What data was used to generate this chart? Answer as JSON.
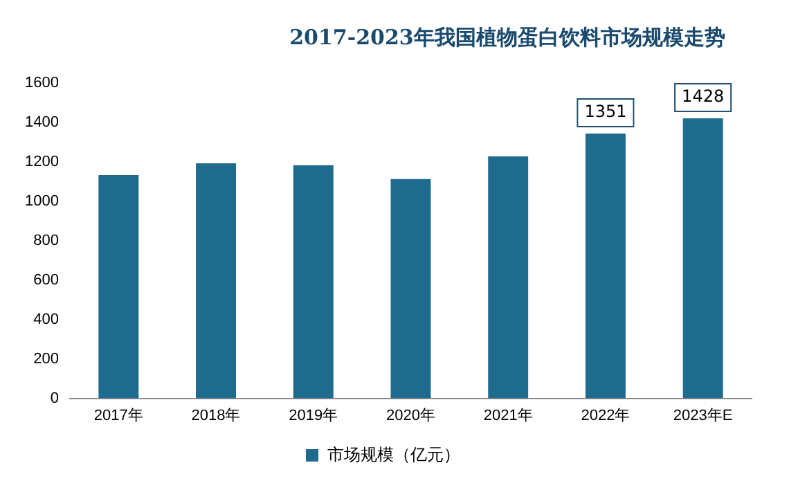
{
  "chart_data": {
    "type": "bar",
    "title": "2017-2023年我国植物蛋白饮料市场规模走势",
    "categories": [
      "2017年",
      "2018年",
      "2019年",
      "2020年",
      "2021年",
      "2022年",
      "2023年E"
    ],
    "series": [
      {
        "name": "市场规模（亿元）",
        "color": "#1f6b8e",
        "values": [
          1140,
          1200,
          1190,
          1120,
          1235,
          1351,
          1428
        ],
        "value_labels": [
          null,
          null,
          null,
          null,
          null,
          "1351",
          "1428"
        ]
      }
    ],
    "ylim": [
      0,
      1600
    ],
    "yticks": [
      0,
      200,
      400,
      600,
      800,
      1000,
      1200,
      1400,
      1600
    ],
    "grid": false,
    "legend": "bottom"
  }
}
